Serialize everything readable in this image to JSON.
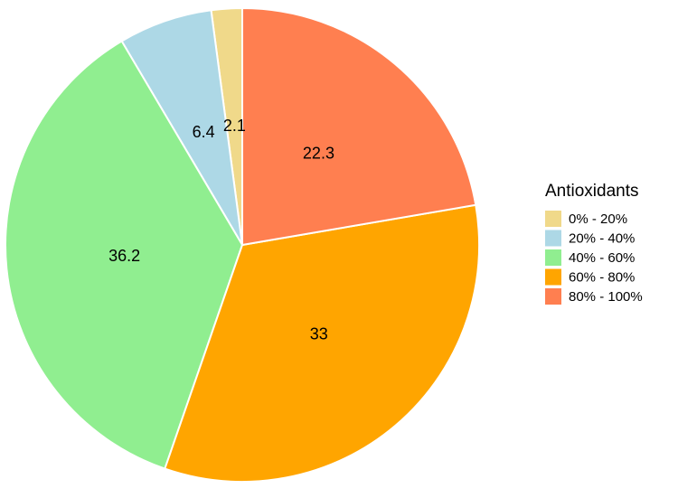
{
  "chart_data": {
    "type": "pie",
    "legend_title": "Antioxidants",
    "categories": [
      "0% - 20%",
      "20% - 40%",
      "40% - 60%",
      "60% - 80%",
      "80% - 100%"
    ],
    "values": [
      2.1,
      6.4,
      36.2,
      33,
      22.3
    ],
    "colors": [
      "#f0d98a",
      "#add8e6",
      "#90ee90",
      "#ffa500",
      "#ff7f50"
    ],
    "direction": "counterclockwise",
    "legend_position": "right"
  }
}
